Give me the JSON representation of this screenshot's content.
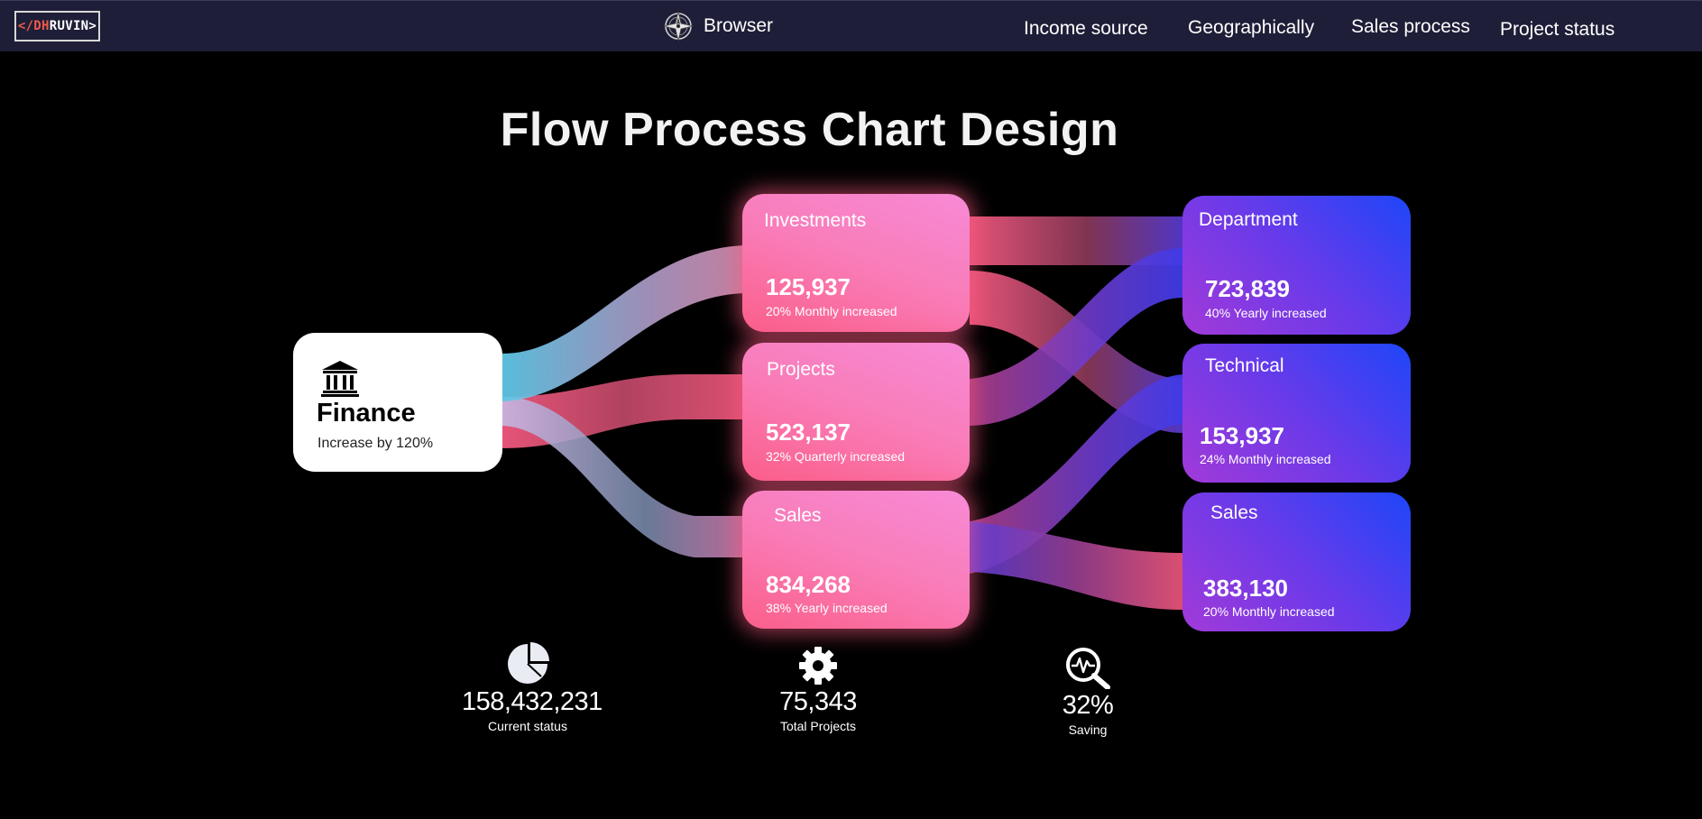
{
  "header": {
    "logo": {
      "prefix": "</DH",
      "suffix": "RUVIN>"
    },
    "brand_title": "Browser",
    "nav": [
      {
        "label": "Income source"
      },
      {
        "label": "Geographically"
      },
      {
        "label": "Sales process"
      },
      {
        "label": "Project status"
      }
    ]
  },
  "title": "Flow Process Chart Design",
  "source": {
    "label": "Finance",
    "subtitle": "Increase by 120%",
    "icon": "bank-icon"
  },
  "middle": [
    {
      "label": "Investments",
      "value": "125,937",
      "subtitle": "20% Monthly increased"
    },
    {
      "label": "Projects",
      "value": "523,137",
      "subtitle": "32% Quarterly increased"
    },
    {
      "label": "Sales",
      "value": "834,268",
      "subtitle": "38% Yearly increased"
    }
  ],
  "right": [
    {
      "label": "Department",
      "value": "723,839",
      "subtitle": "40% Yearly increased"
    },
    {
      "label": "Technical",
      "value": "153,937",
      "subtitle": "24% Monthly increased"
    },
    {
      "label": "Sales",
      "value": "383,130",
      "subtitle": "20% Monthly increased"
    }
  ],
  "stats": [
    {
      "value": "158,432,231",
      "label": "Current status",
      "icon": "pie-chart-icon"
    },
    {
      "value": "75,343",
      "label": "Total Projects",
      "icon": "gear-icon"
    },
    {
      "value": "32%",
      "label": "Saving",
      "icon": "magnifier-pulse-icon"
    }
  ],
  "colors": {
    "background": "#000000",
    "topbar": "#1e1e38",
    "pink_card": "#f97cb8",
    "violet_card": "#6a3ae9",
    "flow_blue": "#5ec6e6",
    "flow_pink": "#f2587e",
    "flow_violet": "#5a3bd8"
  }
}
